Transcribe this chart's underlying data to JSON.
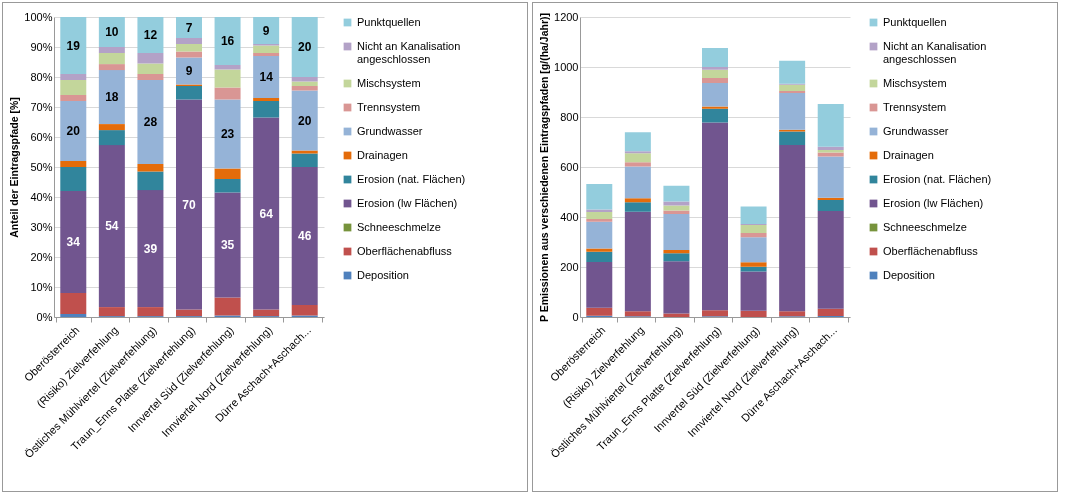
{
  "chart_data": [
    {
      "type": "bar",
      "stacked": true,
      "ylabel": "Anteil  der Eintragspfade [%]",
      "legend": "right",
      "grid": "y",
      "categories": [
        "Oberösterreich",
        "(Risiko) Zielverfehlung",
        "Östliches Mühlviertel (Zielverfehlung)",
        "Traun_Enns Platte (Zielverfehlung)",
        "Innvertel Süd (Zielverfehlung)",
        "Innviertel Nord (Zielverfehlung)",
        "Dürre Aschach+Aschach..."
      ],
      "ylim": [
        0,
        100
      ],
      "yticks": [
        {
          "value": 0,
          "label": "0%"
        },
        {
          "value": 10,
          "label": "10%"
        },
        {
          "value": 20,
          "label": "20%"
        },
        {
          "value": 30,
          "label": "30%"
        },
        {
          "value": 40,
          "label": "40%"
        },
        {
          "value": 50,
          "label": "50%"
        },
        {
          "value": 60,
          "label": "60%"
        },
        {
          "value": 70,
          "label": "70%"
        },
        {
          "value": 80,
          "label": "80%"
        },
        {
          "value": 90,
          "label": "90%"
        },
        {
          "value": 100,
          "label": "100%"
        }
      ],
      "series": [
        {
          "name": "Deposition",
          "color": "#4f81bd",
          "values": [
            1,
            0.3,
            0.3,
            0.3,
            0.5,
            0.3,
            0.5
          ]
        },
        {
          "name": "Oberflächenabfluss",
          "color": "#c0504d",
          "values": [
            7,
            3,
            3,
            2.2,
            6,
            2.2,
            3.5
          ]
        },
        {
          "name": "Schneeschmelze",
          "color": "#77933c",
          "values": [
            0,
            0,
            0,
            0,
            0,
            0,
            0
          ]
        },
        {
          "name": "Erosion (lw Flächen)",
          "color": "#71558f",
          "values": [
            34,
            54,
            39,
            70,
            35,
            64,
            46
          ],
          "value_labels": [
            "34",
            "54",
            "39",
            "70",
            "35",
            "64",
            "46"
          ]
        },
        {
          "name": "Erosion (nat. Flächen)",
          "color": "#31859c",
          "values": [
            8,
            5,
            6.2,
            4.5,
            4.5,
            5.5,
            4.5
          ]
        },
        {
          "name": "Drainagen",
          "color": "#e46c0a",
          "values": [
            2,
            2,
            2.5,
            0.5,
            3.5,
            1,
            1
          ]
        },
        {
          "name": "Grundwasser",
          "color": "#95b3d7",
          "values": [
            20,
            18,
            28,
            9,
            23,
            14,
            20
          ],
          "value_labels": [
            "20",
            "18",
            "28",
            "9",
            "23",
            "14",
            "20"
          ]
        },
        {
          "name": "Trennsystem",
          "color": "#d99694",
          "values": [
            2,
            2,
            2,
            2,
            4,
            1,
            1.5
          ]
        },
        {
          "name": "Mischsystem",
          "color": "#c3d69b",
          "values": [
            5,
            3.7,
            3.5,
            2.5,
            6,
            2.5,
            1.5
          ]
        },
        {
          "name": "Nicht an Kanalisation angeschlossen",
          "color": "#b3a2c7",
          "values": [
            2,
            2,
            3.5,
            2,
            1.5,
            0.5,
            1.5
          ]
        },
        {
          "name": "Punktquellen",
          "color": "#93cddd",
          "values": [
            19,
            10,
            12,
            7,
            16,
            9,
            20
          ],
          "value_labels": [
            "19",
            "10",
            "12",
            "7",
            "16",
            "9",
            "20"
          ]
        }
      ]
    },
    {
      "type": "bar",
      "stacked": true,
      "ylabel": "P Emissionen aus verschiedenen Eintragspfaden [g/(ha/Jahr)]",
      "legend": "right",
      "grid": "y",
      "categories": [
        "Oberösterreich",
        "(Risiko) Zielverfehlung",
        "Östliches Mühlviertel (Zielverfehlung)",
        "Traun_Enns Platte (Zielverfehlung)",
        "Innvertel Süd (Zielverfehlung)",
        "Innviertel Nord (Zielverfehlung)",
        "Dürre Aschach+Aschach..."
      ],
      "ylim": [
        0,
        1200
      ],
      "yticks": [
        0,
        200,
        400,
        600,
        800,
        1000,
        1200
      ],
      "series": [
        {
          "name": "Deposition",
          "color": "#4f81bd",
          "values": [
            5,
            3,
            null,
            3,
            null,
            3,
            4
          ]
        },
        {
          "name": "Oberflächenabfluss",
          "color": "#c0504d",
          "values": [
            32,
            20,
            14,
            24,
            25,
            20,
            29
          ]
        },
        {
          "name": "Schneeschmelze",
          "color": "#77933c",
          "values": [
            0,
            0,
            0,
            0,
            0,
            0,
            0
          ]
        },
        {
          "name": "Erosion (lw Flächen)",
          "color": "#71558f",
          "values": [
            183,
            398,
            209,
            751,
            157,
            665,
            391
          ]
        },
        {
          "name": "Erosion (nat. Flächen)",
          "color": "#31859c",
          "values": [
            41,
            38,
            32,
            55,
            19,
            54,
            44
          ]
        },
        {
          "name": "Drainagen",
          "color": "#e46c0a",
          "values": [
            13,
            16,
            13,
            9,
            18,
            7,
            9
          ]
        },
        {
          "name": "Grundwasser",
          "color": "#95b3d7",
          "values": [
            107,
            127,
            144,
            94,
            100,
            147,
            165
          ]
        },
        {
          "name": "Trennsystem",
          "color": "#d99694",
          "values": [
            11,
            17,
            14,
            20,
            17,
            8,
            16
          ]
        },
        {
          "name": "Mischsystem",
          "color": "#c3d69b",
          "values": [
            28,
            36,
            20,
            33,
            32,
            25,
            10
          ]
        },
        {
          "name": "Nicht an Kanalisation angeschlossen",
          "color": "#b3a2c7",
          "values": [
            10,
            8,
            16,
            11,
            4,
            4,
            13
          ]
        },
        {
          "name": "Punktquellen",
          "color": "#93cddd",
          "values": [
            102,
            76,
            63,
            76,
            70,
            92,
            171
          ]
        }
      ]
    }
  ]
}
